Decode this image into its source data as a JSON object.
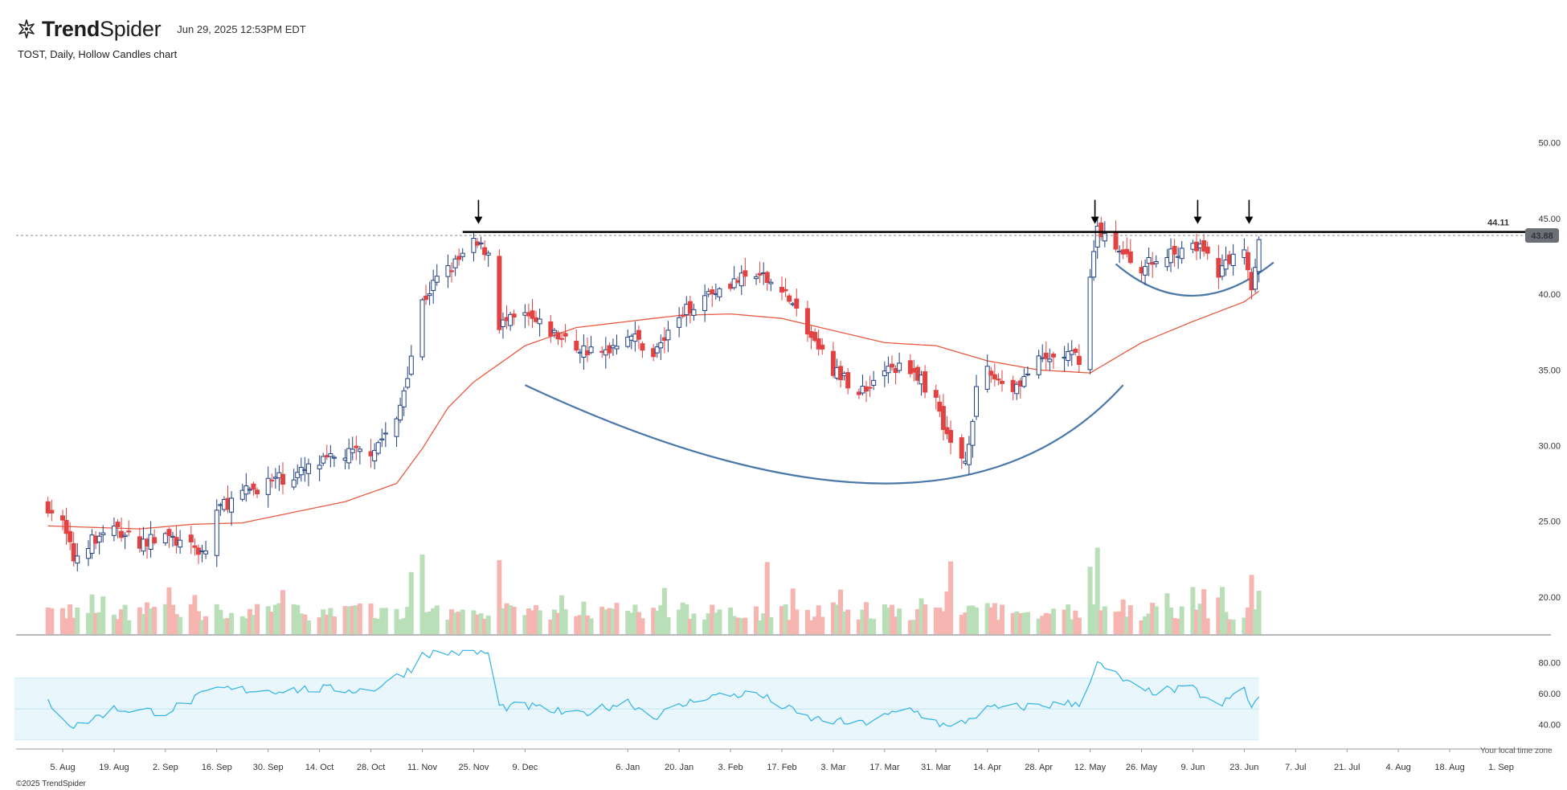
{
  "header": {
    "brand_bold": "Trend",
    "brand_light": "Spider",
    "timestamp": "Jun 29, 2025 12:53PM EDT",
    "symbol_line": "TOST, Daily, Hollow Candles chart"
  },
  "footer": {
    "copyright": "©2025 TrendSpider",
    "timezone_note": "Your local time zone"
  },
  "colors": {
    "up": "#1f3f7f",
    "down": "#e14343",
    "ma": "#e85a40",
    "arc": "#4a78a8",
    "vol_up": "#b9dfb8",
    "vol_down": "#f6b5b0",
    "rsi": "#2fb3e6",
    "rsi_band": "#e9f6fb",
    "resistance": "#000000"
  },
  "chart_data": {
    "type": "candlestick",
    "title": "TOST, Daily, Hollow Candles chart",
    "x_ticks": [
      "5. Aug",
      "19. Aug",
      "2. Sep",
      "16. Sep",
      "30. Sep",
      "14. Oct",
      "28. Oct",
      "11. Nov",
      "25. Nov",
      "9. Dec",
      "6. Jan",
      "20. Jan",
      "3. Feb",
      "17. Feb",
      "3. Mar",
      "17. Mar",
      "31. Mar",
      "14. Apr",
      "28. Apr",
      "12. May",
      "26. May",
      "9. Jun",
      "23. Jun",
      "7. Jul",
      "21. Jul",
      "4. Aug",
      "18. Aug",
      "1. Sep"
    ],
    "price_axis": {
      "ticks": [
        "50.00",
        "45.00",
        "40.00",
        "35.00",
        "30.00",
        "25.00",
        "20.00"
      ],
      "range": [
        17.5,
        52
      ]
    },
    "rsi_axis": {
      "ticks": [
        "80.00",
        "60.00",
        "40.00"
      ],
      "band": [
        30,
        70
      ],
      "mid": 50
    },
    "resistance": {
      "value": 44.11,
      "label": "44.11"
    },
    "last_price": {
      "value": 43.88,
      "label": "43.88"
    },
    "arrows": [
      "25. Nov",
      "12. May",
      "9. Jun",
      "23. Jun"
    ],
    "close_path": [
      [
        "1. Aug",
        26.0
      ],
      [
        "5. Aug",
        24.8
      ],
      [
        "8. Aug",
        22.5
      ],
      [
        "12. Aug",
        23.6
      ],
      [
        "19. Aug",
        24.5
      ],
      [
        "26. Aug",
        23.6
      ],
      [
        "2. Sep",
        24.0
      ],
      [
        "9. Sep",
        23.2
      ],
      [
        "13. Sep",
        23.0
      ],
      [
        "16. Sep",
        25.8
      ],
      [
        "23. Sep",
        26.8
      ],
      [
        "30. Sep",
        27.6
      ],
      [
        "7. Oct",
        28.0
      ],
      [
        "14. Oct",
        28.8
      ],
      [
        "21. Oct",
        29.4
      ],
      [
        "28. Oct",
        29.7
      ],
      [
        "4. Nov",
        31.5
      ],
      [
        "8. Nov",
        36.0
      ],
      [
        "11. Nov",
        39.5
      ],
      [
        "15. Nov",
        41.0
      ],
      [
        "20. Nov",
        42.0
      ],
      [
        "25. Nov",
        43.3
      ],
      [
        "29. Nov",
        42.8
      ],
      [
        "2. Dec",
        38.0
      ],
      [
        "9. Dec",
        38.5
      ],
      [
        "16. Dec",
        37.5
      ],
      [
        "23. Dec",
        36.5
      ],
      [
        "30. Dec",
        36.0
      ],
      [
        "6. Jan",
        37.5
      ],
      [
        "13. Jan",
        36.0
      ],
      [
        "20. Jan",
        38.5
      ],
      [
        "27. Jan",
        40.0
      ],
      [
        "3. Feb",
        40.8
      ],
      [
        "10. Feb",
        41.2
      ],
      [
        "17. Feb",
        40.5
      ],
      [
        "24. Feb",
        37.5
      ],
      [
        "3. Mar",
        35.0
      ],
      [
        "10. Mar",
        33.5
      ],
      [
        "17. Mar",
        35.0
      ],
      [
        "24. Mar",
        35.2
      ],
      [
        "31. Mar",
        33.0
      ],
      [
        "4. Apr",
        30.0
      ],
      [
        "8. Apr",
        29.0
      ],
      [
        "11. Apr",
        33.5
      ],
      [
        "14. Apr",
        34.8
      ],
      [
        "21. Apr",
        33.8
      ],
      [
        "28. Apr",
        35.5
      ],
      [
        "5. May",
        36.0
      ],
      [
        "9. May",
        35.8
      ],
      [
        "12. May",
        41.0
      ],
      [
        "14. May",
        44.5
      ],
      [
        "19. May",
        42.8
      ],
      [
        "26. May",
        41.8
      ],
      [
        "2. Jun",
        42.5
      ],
      [
        "9. Jun",
        43.5
      ],
      [
        "16. Jun",
        41.5
      ],
      [
        "23. Jun",
        43.2
      ],
      [
        "25. Jun",
        40.5
      ],
      [
        "27. Jun",
        43.88
      ]
    ],
    "sma_path": [
      [
        "1. Aug",
        24.7
      ],
      [
        "26. Aug",
        24.5
      ],
      [
        "9. Sep",
        24.8
      ],
      [
        "23. Sep",
        24.9
      ],
      [
        "7. Oct",
        25.6
      ],
      [
        "21. Oct",
        26.3
      ],
      [
        "4. Nov",
        27.5
      ],
      [
        "11. Nov",
        29.8
      ],
      [
        "18. Nov",
        32.5
      ],
      [
        "25. Nov",
        34.2
      ],
      [
        "9. Dec",
        36.6
      ],
      [
        "23. Dec",
        37.8
      ],
      [
        "6. Jan",
        38.2
      ],
      [
        "20. Jan",
        38.6
      ],
      [
        "3. Feb",
        38.7
      ],
      [
        "17. Feb",
        38.4
      ],
      [
        "3. Mar",
        37.6
      ],
      [
        "17. Mar",
        36.8
      ],
      [
        "31. Mar",
        36.6
      ],
      [
        "14. Apr",
        35.6
      ],
      [
        "28. Apr",
        35.0
      ],
      [
        "12. May",
        34.8
      ],
      [
        "26. May",
        36.8
      ],
      [
        "9. Jun",
        38.2
      ],
      [
        "23. Jun",
        39.5
      ],
      [
        "27. Jun",
        40.2
      ]
    ],
    "rsi_path": [
      [
        "1. Aug",
        55
      ],
      [
        "8. Aug",
        38
      ],
      [
        "19. Aug",
        50
      ],
      [
        "2. Sep",
        48
      ],
      [
        "16. Sep",
        63
      ],
      [
        "30. Sep",
        62
      ],
      [
        "14. Oct",
        63
      ],
      [
        "28. Oct",
        62
      ],
      [
        "8. Nov",
        76
      ],
      [
        "11. Nov",
        86
      ],
      [
        "25. Nov",
        87
      ],
      [
        "29. Nov",
        86
      ],
      [
        "2. Dec",
        51
      ],
      [
        "9. Dec",
        52
      ],
      [
        "23. Dec",
        46
      ],
      [
        "6. Jan",
        55
      ],
      [
        "13. Jan",
        45
      ],
      [
        "27. Jan",
        58
      ],
      [
        "10. Feb",
        60
      ],
      [
        "24. Feb",
        44
      ],
      [
        "10. Mar",
        40
      ],
      [
        "24. Mar",
        50
      ],
      [
        "4. Apr",
        37
      ],
      [
        "14. Apr",
        50
      ],
      [
        "28. Apr",
        52
      ],
      [
        "9. May",
        54
      ],
      [
        "14. May",
        79
      ],
      [
        "19. May",
        72
      ],
      [
        "26. May",
        61
      ],
      [
        "9. Jun",
        63
      ],
      [
        "16. Jun",
        51
      ],
      [
        "23. Jun",
        64
      ],
      [
        "25. Jun",
        50
      ],
      [
        "27. Jun",
        58
      ]
    ],
    "cup_arc": {
      "from": [
        "9. Dec",
        34.0
      ],
      "bottom": [
        "17. Mar",
        27.5
      ],
      "to": [
        "21. May",
        34.0
      ]
    },
    "handle_arc": {
      "from": [
        "19. May",
        42.0
      ],
      "bottom": [
        "9. Jun",
        39.9
      ],
      "to": [
        "1. Jul",
        42.1
      ]
    }
  }
}
